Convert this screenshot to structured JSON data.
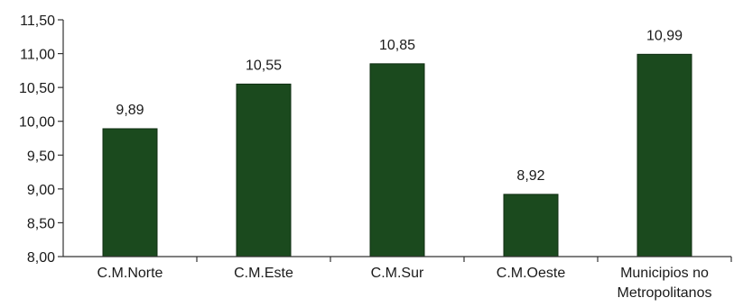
{
  "chart_data": {
    "type": "bar",
    "categories": [
      [
        "C.M.Norte"
      ],
      [
        "C.M.Este"
      ],
      [
        "C.M.Sur"
      ],
      [
        "C.M.Oeste"
      ],
      [
        "Municipios no",
        "Metropolitanos"
      ]
    ],
    "values": [
      9.89,
      10.55,
      10.85,
      8.92,
      10.99
    ],
    "data_labels": [
      "9,89",
      "10,55",
      "10,85",
      "8,92",
      "10,99"
    ],
    "ylim": [
      8.0,
      11.5
    ],
    "yticks": [
      8.0,
      8.5,
      9.0,
      9.5,
      10.0,
      10.5,
      11.0,
      11.5
    ],
    "ytick_labels": [
      "8,00",
      "8,50",
      "9,00",
      "9,50",
      "10,00",
      "10,50",
      "11,00",
      "11,50"
    ],
    "bar_color": "#1b4a1e",
    "grid": false,
    "legend": "none",
    "title": "",
    "xlabel": "",
    "ylabel": ""
  }
}
